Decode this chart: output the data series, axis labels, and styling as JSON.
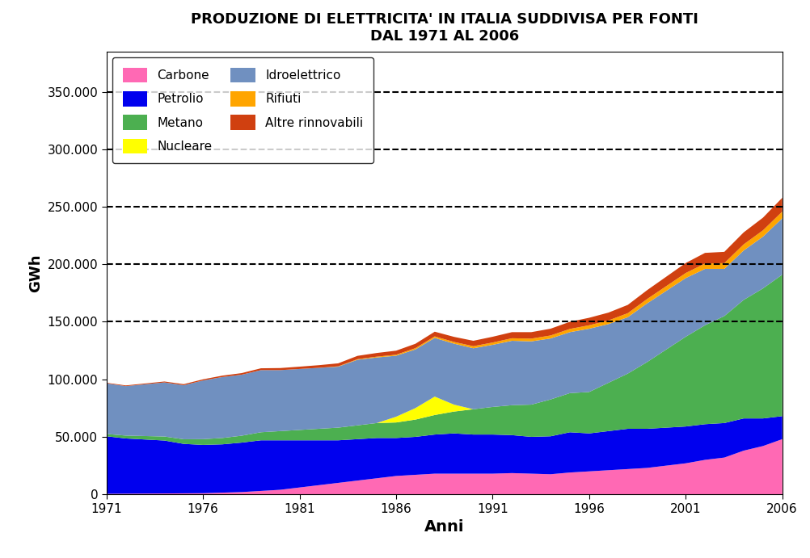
{
  "title": "PRODUZIONE DI ELETTRICITA' IN ITALIA SUDDIVISA PER FONTI\nDAL 1971 AL 2006",
  "xlabel": "Anni",
  "ylabel": "GWh",
  "years": [
    1971,
    1972,
    1973,
    1974,
    1975,
    1976,
    1977,
    1978,
    1979,
    1980,
    1981,
    1982,
    1983,
    1984,
    1985,
    1986,
    1987,
    1988,
    1989,
    1990,
    1991,
    1992,
    1993,
    1994,
    1995,
    1996,
    1997,
    1998,
    1999,
    2000,
    2001,
    2002,
    2003,
    2004,
    2005,
    2006
  ],
  "series": {
    "Carbone": [
      500,
      600,
      700,
      800,
      900,
      1000,
      1500,
      2000,
      3000,
      4000,
      6000,
      8000,
      10000,
      12000,
      14000,
      16000,
      17000,
      18000,
      18000,
      18000,
      18000,
      18500,
      18000,
      17500,
      19000,
      20000,
      21000,
      22000,
      23000,
      25000,
      27000,
      30000,
      32000,
      38000,
      42000,
      48000
    ],
    "Petrolio": [
      50000,
      48000,
      47000,
      46000,
      43000,
      42000,
      42000,
      43000,
      44000,
      43000,
      41000,
      39000,
      37000,
      36000,
      35000,
      33000,
      33000,
      34000,
      35000,
      34000,
      34000,
      33000,
      32000,
      33000,
      35000,
      33000,
      34000,
      35000,
      34000,
      33000,
      32000,
      31000,
      30000,
      28000,
      24000,
      20000
    ],
    "Metano": [
      2000,
      2500,
      3000,
      3500,
      4000,
      5000,
      5500,
      6000,
      7000,
      8000,
      9000,
      10000,
      11000,
      12000,
      13000,
      13500,
      15000,
      17000,
      19000,
      22000,
      24000,
      26000,
      28000,
      32000,
      34000,
      36000,
      42000,
      48000,
      58000,
      68000,
      78000,
      86000,
      93000,
      103000,
      113000,
      123000
    ],
    "Nucleare": [
      0,
      0,
      0,
      0,
      0,
      0,
      0,
      0,
      0,
      0,
      0,
      0,
      0,
      0,
      0,
      5000,
      10000,
      16000,
      6000,
      0,
      0,
      0,
      0,
      0,
      0,
      0,
      0,
      0,
      0,
      0,
      0,
      0,
      0,
      0,
      0,
      0
    ],
    "Idroelettrico": [
      44000,
      43000,
      45000,
      47000,
      47000,
      51000,
      53000,
      53000,
      54000,
      53000,
      53000,
      53000,
      53000,
      57000,
      57000,
      53000,
      51000,
      51000,
      53000,
      53000,
      54000,
      56000,
      55000,
      53000,
      53000,
      55000,
      51000,
      49000,
      51000,
      51000,
      51000,
      49000,
      41000,
      43000,
      45000,
      49000
    ],
    "Rifiuti": [
      0,
      0,
      0,
      0,
      0,
      0,
      0,
      0,
      0,
      0,
      0,
      0,
      300,
      500,
      700,
      900,
      1100,
      1300,
      1500,
      1800,
      2000,
      2200,
      2400,
      2600,
      2800,
      3000,
      3200,
      3500,
      3800,
      4100,
      4400,
      4700,
      5000,
      5300,
      5500,
      5800
    ],
    "Altre rinnovabili": [
      500,
      600,
      700,
      800,
      900,
      1000,
      1200,
      1400,
      1600,
      1800,
      2000,
      2300,
      2600,
      2900,
      3200,
      3500,
      3800,
      4100,
      4400,
      4700,
      5000,
      5300,
      5600,
      5900,
      6200,
      6500,
      6800,
      7200,
      7700,
      8200,
      8700,
      9200,
      9800,
      10400,
      11000,
      12000
    ]
  },
  "colors": {
    "Carbone": "#FF69B4",
    "Petrolio": "#0000EE",
    "Metano": "#4CAF50",
    "Nucleare": "#FFFF00",
    "Idroelettrico": "#7090C0",
    "Rifiuti": "#FFA500",
    "Altre rinnovabili": "#D04010"
  },
  "stack_order": [
    "Carbone",
    "Petrolio",
    "Metano",
    "Nucleare",
    "Idroelettrico",
    "Rifiuti",
    "Altre rinnovabili"
  ],
  "ylim": [
    0,
    385000
  ],
  "yticks": [
    0,
    50000,
    100000,
    150000,
    200000,
    250000,
    300000,
    350000
  ],
  "ytick_labels": [
    "0",
    "50.000",
    "100.000",
    "150.000",
    "200.000",
    "250.000",
    "300.000",
    "350.000"
  ],
  "xticks": [
    1971,
    1976,
    1981,
    1986,
    1991,
    1996,
    2001,
    2006
  ],
  "grid_y": [
    150000,
    200000,
    250000,
    300000,
    350000
  ]
}
